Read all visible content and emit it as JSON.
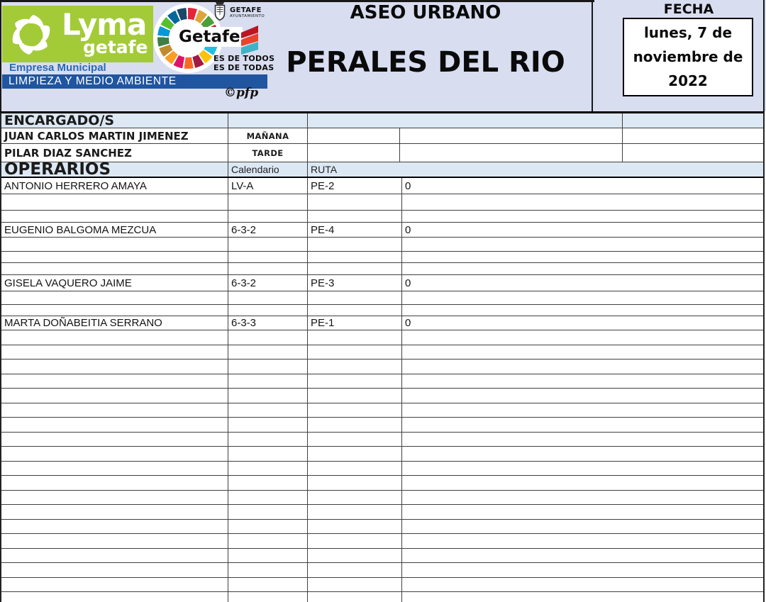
{
  "banner": {
    "service_title": "ASEO URBANO",
    "zone_title": "PERALES DEL RIO",
    "fecha_label": "FECHA",
    "date_lines": [
      "lunes, 7 de",
      "noviembre de",
      "2022"
    ],
    "credit": "©pfp"
  },
  "logo": {
    "brand": "Lyma",
    "brand_sub": "getafe",
    "line1": "Empresa Municipal",
    "line2": "LIMPIEZA Y MEDIO AMBIENTE",
    "wheel_label": "Getafe",
    "crest_title": "GETAFE",
    "crest_subtitle": "AYUNTAMIENTO",
    "slogan_line1": "ES DE TODOS",
    "slogan_line2": "ES DE TODAS"
  },
  "colors": {
    "banner_bg": "#d8ddf0",
    "section_header_bg": "#dce8f4",
    "logo_green": "#a3cb37",
    "bar_blue": "#20559f",
    "empresa_text_blue": "#2a6ab4"
  },
  "encargados": {
    "title": "ENCARGADO/S",
    "rows": [
      {
        "name": "JUAN CARLOS MARTIN JIMENEZ",
        "shift": "MAÑANA"
      },
      {
        "name": "PILAR DIAZ SANCHEZ",
        "shift": "TARDE"
      }
    ]
  },
  "roster": {
    "title": "OPERARIOS",
    "col_calendario": "Calendario",
    "col_ruta": "RUTA",
    "rows": [
      {
        "kind": "data",
        "h": 23,
        "name": "ANTONIO HERRERO AMAYA",
        "calendario": "LV-A",
        "ruta": "PE-2",
        "obs": "0"
      },
      {
        "kind": "blank",
        "h": 23
      },
      {
        "kind": "blank",
        "h": 17
      },
      {
        "kind": "data",
        "h": 21,
        "name": "EUGENIO BALGOMA MEZCUA",
        "calendario": "6-3-2",
        "ruta": "PE-4",
        "obs": "0"
      },
      {
        "kind": "blank",
        "h": 20
      },
      {
        "kind": "blank",
        "h": 16
      },
      {
        "kind": "blank",
        "h": 17
      },
      {
        "kind": "data",
        "h": 23,
        "name": "GISELA VAQUERO JAIME",
        "calendario": "6-3-2",
        "ruta": "PE-3",
        "obs": "0"
      },
      {
        "kind": "blank",
        "h": 19
      },
      {
        "kind": "blank",
        "h": 16
      },
      {
        "kind": "data",
        "h": 20,
        "name": "MARTA DOÑABEITIA SERRANO",
        "calendario": "6-3-3",
        "ruta": "PE-1",
        "obs": "0"
      },
      {
        "kind": "blank",
        "h": 20.5,
        "repeat": 19
      }
    ]
  }
}
